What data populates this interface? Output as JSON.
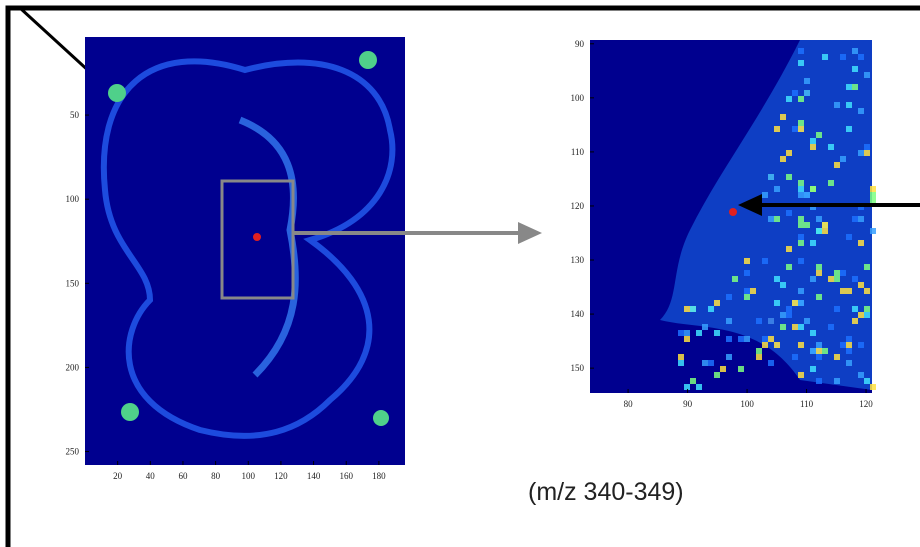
{
  "panels": [
    {
      "xlim": [
        0,
        196
      ],
      "ylim": [
        3.6,
        258
      ],
      "xticks": [
        20,
        40,
        60,
        80,
        100,
        120,
        140,
        160,
        180
      ],
      "yticks": [
        50,
        100,
        150,
        200,
        250
      ]
    },
    {
      "xlim": [
        73.6,
        121
      ],
      "ylim": [
        89.3,
        154.6
      ],
      "xticks": [
        80,
        90,
        100,
        110,
        120
      ],
      "yticks": [
        90,
        100,
        110,
        120,
        130,
        140,
        150
      ]
    }
  ],
  "caption": "(m/z 340-349)"
}
